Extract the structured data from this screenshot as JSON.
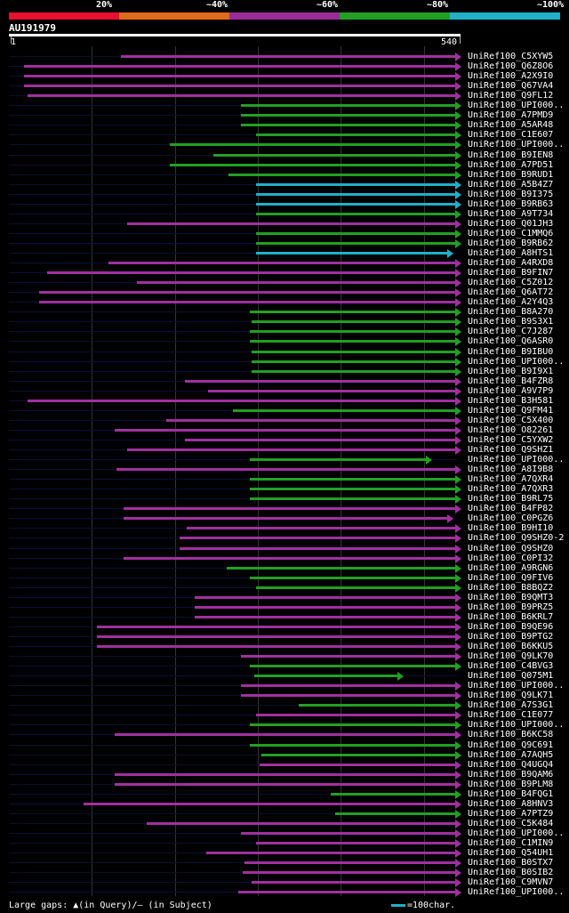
{
  "legend": {
    "segments": [
      {
        "label": "20%",
        "color": "#e8102c"
      },
      {
        "label": "~40%",
        "color": "#e06a1a"
      },
      {
        "label": "~60%",
        "color": "#9a2c9a"
      },
      {
        "label": "~80%",
        "color": "#22a022"
      },
      {
        "label": "~100%",
        "color": "#20b0c8"
      }
    ]
  },
  "query": {
    "id": "AU191979",
    "start_label": "1",
    "end_label": "540",
    "length": 540
  },
  "colors": {
    "purple": "#a030a0",
    "green": "#22a022",
    "cyan": "#20b0c8"
  },
  "hits": [
    {
      "name": "UniRef100_C5XYW5",
      "start": 135,
      "end": 540,
      "c": "purple"
    },
    {
      "name": "UniRef100_Q6Z8O6",
      "start": 18,
      "end": 540,
      "c": "purple"
    },
    {
      "name": "UniRef100_A2X9I0",
      "start": 18,
      "end": 540,
      "c": "purple"
    },
    {
      "name": "UniRef100_Q67VA4",
      "start": 18,
      "end": 540,
      "c": "purple"
    },
    {
      "name": "UniRef100_Q9FL12",
      "start": 22,
      "end": 540,
      "c": "purple"
    },
    {
      "name": "UniRef100_UPI000..",
      "start": 280,
      "end": 540,
      "c": "green"
    },
    {
      "name": "UniRef100_A7PMD9",
      "start": 280,
      "end": 540,
      "c": "green"
    },
    {
      "name": "UniRef100_A5AR48",
      "start": 280,
      "end": 540,
      "c": "green"
    },
    {
      "name": "UniRef100_C1E607",
      "start": 298,
      "end": 540,
      "c": "green"
    },
    {
      "name": "UniRef100_UPI000..",
      "start": 194,
      "end": 540,
      "c": "green"
    },
    {
      "name": "UniRef100_B9IEN8",
      "start": 246,
      "end": 540,
      "c": "green"
    },
    {
      "name": "UniRef100_A7PD51",
      "start": 194,
      "end": 540,
      "c": "green"
    },
    {
      "name": "UniRef100_B9RUD1",
      "start": 265,
      "end": 540,
      "c": "green"
    },
    {
      "name": "UniRef100_A5B4Z7",
      "start": 298,
      "end": 540,
      "c": "cyan"
    },
    {
      "name": "UniRef100_B9I375",
      "start": 298,
      "end": 540,
      "c": "cyan"
    },
    {
      "name": "UniRef100_B9RB63",
      "start": 298,
      "end": 540,
      "c": "cyan"
    },
    {
      "name": "UniRef100_A9T734",
      "start": 298,
      "end": 540,
      "c": "green"
    },
    {
      "name": "UniRef100_Q01JH3",
      "start": 142,
      "end": 540,
      "c": "purple"
    },
    {
      "name": "UniRef100_C1MMQ6",
      "start": 298,
      "end": 540,
      "c": "green"
    },
    {
      "name": "UniRef100_B9RB62",
      "start": 298,
      "end": 540,
      "c": "green"
    },
    {
      "name": "UniRef100_A8HTS1",
      "start": 298,
      "end": 530,
      "c": "cyan"
    },
    {
      "name": "UniRef100_A4RXD8",
      "start": 120,
      "end": 540,
      "c": "purple"
    },
    {
      "name": "UniRef100_B9FIN7",
      "start": 46,
      "end": 540,
      "c": "purple"
    },
    {
      "name": "UniRef100_C5Z012",
      "start": 154,
      "end": 540,
      "c": "purple"
    },
    {
      "name": "UniRef100_Q6AT72",
      "start": 36,
      "end": 540,
      "c": "purple"
    },
    {
      "name": "UniRef100_A2Y4Q3",
      "start": 36,
      "end": 540,
      "c": "purple"
    },
    {
      "name": "UniRef100_B8A270",
      "start": 290,
      "end": 540,
      "c": "green"
    },
    {
      "name": "UniRef100_B9S3X1",
      "start": 292,
      "end": 540,
      "c": "green"
    },
    {
      "name": "UniRef100_C7J287",
      "start": 290,
      "end": 540,
      "c": "green"
    },
    {
      "name": "UniRef100_Q6ASR0",
      "start": 290,
      "end": 540,
      "c": "green"
    },
    {
      "name": "UniRef100_B9IBU0",
      "start": 292,
      "end": 540,
      "c": "green"
    },
    {
      "name": "UniRef100_UPI000..",
      "start": 292,
      "end": 540,
      "c": "green"
    },
    {
      "name": "UniRef100_B9I9X1",
      "start": 292,
      "end": 540,
      "c": "green"
    },
    {
      "name": "UniRef100_B4FZR8",
      "start": 212,
      "end": 540,
      "c": "purple"
    },
    {
      "name": "UniRef100_A9V7P9",
      "start": 240,
      "end": 540,
      "c": "purple"
    },
    {
      "name": "UniRef100_B3H581",
      "start": 22,
      "end": 540,
      "c": "purple"
    },
    {
      "name": "UniRef100_Q9FM41",
      "start": 270,
      "end": 540,
      "c": "green"
    },
    {
      "name": "UniRef100_C5X400",
      "start": 190,
      "end": 540,
      "c": "purple"
    },
    {
      "name": "UniRef100_O82261",
      "start": 127,
      "end": 540,
      "c": "purple"
    },
    {
      "name": "UniRef100_C5YXW2",
      "start": 212,
      "end": 540,
      "c": "purple"
    },
    {
      "name": "UniRef100_Q9SHZ1",
      "start": 142,
      "end": 540,
      "c": "purple"
    },
    {
      "name": "UniRef100_UPI000..",
      "start": 290,
      "end": 505,
      "c": "green"
    },
    {
      "name": "UniRef100_A8I9B8",
      "start": 130,
      "end": 540,
      "c": "purple"
    },
    {
      "name": "UniRef100_A7QXR4",
      "start": 290,
      "end": 540,
      "c": "green"
    },
    {
      "name": "UniRef100_A7QXR3",
      "start": 290,
      "end": 540,
      "c": "green"
    },
    {
      "name": "UniRef100_B9RL75",
      "start": 290,
      "end": 540,
      "c": "green"
    },
    {
      "name": "UniRef100_B4FP82",
      "start": 138,
      "end": 540,
      "c": "purple"
    },
    {
      "name": "UniRef100_C0PGZ6",
      "start": 138,
      "end": 530,
      "c": "purple"
    },
    {
      "name": "UniRef100_B9HI10",
      "start": 214,
      "end": 540,
      "c": "purple"
    },
    {
      "name": "UniRef100_Q9SHZ0-2",
      "start": 206,
      "end": 540,
      "c": "purple"
    },
    {
      "name": "UniRef100_Q9SHZ0",
      "start": 206,
      "end": 540,
      "c": "purple"
    },
    {
      "name": "UniRef100_C0PI32",
      "start": 138,
      "end": 540,
      "c": "purple"
    },
    {
      "name": "UniRef100_A9RGN6",
      "start": 262,
      "end": 540,
      "c": "green"
    },
    {
      "name": "UniRef100_Q9FIV6",
      "start": 290,
      "end": 540,
      "c": "green"
    },
    {
      "name": "UniRef100_B8BQZ2",
      "start": 298,
      "end": 540,
      "c": "green"
    },
    {
      "name": "UniRef100_B9QMT3",
      "start": 224,
      "end": 540,
      "c": "purple"
    },
    {
      "name": "UniRef100_B9PRZ5",
      "start": 224,
      "end": 540,
      "c": "purple"
    },
    {
      "name": "UniRef100_B6KRL7",
      "start": 224,
      "end": 540,
      "c": "purple"
    },
    {
      "name": "UniRef100_B9QE96",
      "start": 106,
      "end": 540,
      "c": "purple"
    },
    {
      "name": "UniRef100_B9PTG2",
      "start": 106,
      "end": 540,
      "c": "purple"
    },
    {
      "name": "UniRef100_B6KKU5",
      "start": 106,
      "end": 540,
      "c": "purple"
    },
    {
      "name": "UniRef100_Q9LK70",
      "start": 280,
      "end": 540,
      "c": "purple"
    },
    {
      "name": "UniRef100_C4BVG3",
      "start": 290,
      "end": 540,
      "c": "green"
    },
    {
      "name": "UniRef100_Q075M1",
      "start": 296,
      "end": 470,
      "c": "green"
    },
    {
      "name": "UniRef100_UPI000..",
      "start": 280,
      "end": 540,
      "c": "purple"
    },
    {
      "name": "UniRef100_Q9LK71",
      "start": 280,
      "end": 540,
      "c": "purple"
    },
    {
      "name": "UniRef100_A7S3G1",
      "start": 349,
      "end": 540,
      "c": "green"
    },
    {
      "name": "UniRef100_C1E077",
      "start": 298,
      "end": 540,
      "c": "purple"
    },
    {
      "name": "UniRef100_UPI000..",
      "start": 290,
      "end": 540,
      "c": "green"
    },
    {
      "name": "UniRef100_B6KC58",
      "start": 127,
      "end": 540,
      "c": "purple"
    },
    {
      "name": "UniRef100_Q9C691",
      "start": 290,
      "end": 540,
      "c": "green"
    },
    {
      "name": "UniRef100_A7AQH5",
      "start": 304,
      "end": 540,
      "c": "green"
    },
    {
      "name": "UniRef100_Q4UGQ4",
      "start": 302,
      "end": 540,
      "c": "purple"
    },
    {
      "name": "UniRef100_B9QAM6",
      "start": 127,
      "end": 540,
      "c": "purple"
    },
    {
      "name": "UniRef100_B9PLM8",
      "start": 127,
      "end": 540,
      "c": "purple"
    },
    {
      "name": "UniRef100_B4FQG1",
      "start": 388,
      "end": 540,
      "c": "green"
    },
    {
      "name": "UniRef100_A8HNV3",
      "start": 90,
      "end": 540,
      "c": "purple"
    },
    {
      "name": "UniRef100_A7PTZ9",
      "start": 393,
      "end": 540,
      "c": "green"
    },
    {
      "name": "UniRef100_C5K484",
      "start": 166,
      "end": 540,
      "c": "purple"
    },
    {
      "name": "UniRef100_UPI000..",
      "start": 280,
      "end": 540,
      "c": "purple"
    },
    {
      "name": "UniRef100_C1MIN9",
      "start": 298,
      "end": 540,
      "c": "purple"
    },
    {
      "name": "UniRef100_Q54UH1",
      "start": 238,
      "end": 540,
      "c": "purple"
    },
    {
      "name": "UniRef100_B0STX7",
      "start": 284,
      "end": 540,
      "c": "purple"
    },
    {
      "name": "UniRef100_B0SIB2",
      "start": 282,
      "end": 540,
      "c": "purple"
    },
    {
      "name": "UniRef100_C9MVN7",
      "start": 292,
      "end": 540,
      "c": "purple"
    },
    {
      "name": "UniRef100_UPI000..",
      "start": 276,
      "end": 540,
      "c": "purple"
    }
  ],
  "footer": {
    "gaps_text": "Large gaps: ▲(in Query)/– (in Subject)",
    "scale_text": "=100char."
  }
}
